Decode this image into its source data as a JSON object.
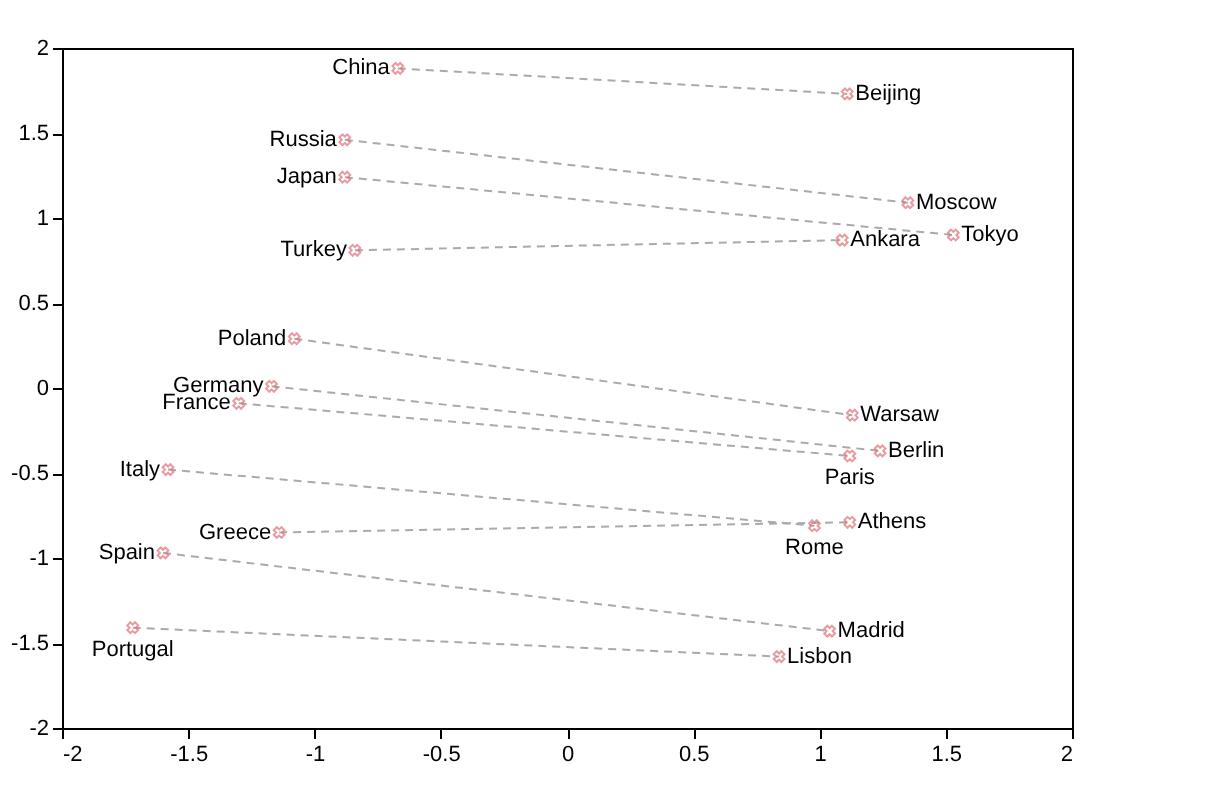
{
  "chart_data": {
    "type": "scatter",
    "xlim": [
      -2,
      2
    ],
    "ylim": [
      -2,
      2
    ],
    "xticks": [
      -2,
      -1.5,
      -1,
      -0.5,
      0,
      0.5,
      1,
      1.5,
      2
    ],
    "yticks": [
      -2,
      -1.5,
      -1,
      -0.5,
      0,
      0.5,
      1,
      1.5,
      2
    ],
    "grid": false,
    "series": [
      {
        "type": "line",
        "marker": "none",
        "line_style": "dashed",
        "color": "#aaaaaa",
        "x": [
          -0.67,
          1.11
        ],
        "values": [
          1.88,
          1.73
        ]
      },
      {
        "type": "line",
        "marker": "none",
        "line_style": "dashed",
        "color": "#aaaaaa",
        "x": [
          -0.88,
          1.35
        ],
        "values": [
          1.46,
          1.09
        ]
      },
      {
        "type": "line",
        "marker": "none",
        "line_style": "dashed",
        "color": "#aaaaaa",
        "x": [
          -0.88,
          1.53
        ],
        "values": [
          1.24,
          0.9
        ]
      },
      {
        "type": "line",
        "marker": "none",
        "line_style": "dashed",
        "color": "#aaaaaa",
        "x": [
          -0.84,
          1.09
        ],
        "values": [
          0.81,
          0.87
        ]
      },
      {
        "type": "line",
        "marker": "none",
        "line_style": "dashed",
        "color": "#aaaaaa",
        "x": [
          -1.08,
          1.13
        ],
        "values": [
          0.29,
          -0.16
        ]
      },
      {
        "type": "line",
        "marker": "none",
        "line_style": "dashed",
        "color": "#aaaaaa",
        "x": [
          -1.17,
          1.24
        ],
        "values": [
          0.01,
          -0.37
        ]
      },
      {
        "type": "line",
        "marker": "none",
        "line_style": "dashed",
        "color": "#aaaaaa",
        "x": [
          -1.3,
          1.12
        ],
        "values": [
          -0.09,
          -0.4
        ]
      },
      {
        "type": "line",
        "marker": "none",
        "line_style": "dashed",
        "color": "#aaaaaa",
        "x": [
          -1.58,
          0.98
        ],
        "values": [
          -0.48,
          -0.81
        ]
      },
      {
        "type": "line",
        "marker": "none",
        "line_style": "dashed",
        "color": "#aaaaaa",
        "x": [
          -1.14,
          1.12
        ],
        "values": [
          -0.85,
          -0.79
        ]
      },
      {
        "type": "line",
        "marker": "none",
        "line_style": "dashed",
        "color": "#aaaaaa",
        "x": [
          -1.6,
          1.04
        ],
        "values": [
          -0.97,
          -1.43
        ]
      },
      {
        "type": "line",
        "marker": "none",
        "line_style": "dashed",
        "color": "#aaaaaa",
        "x": [
          -1.72,
          0.84
        ],
        "values": [
          -1.41,
          -1.58
        ]
      },
      {
        "marker": "cross",
        "color": "#e0707a",
        "x": [
          -0.67,
          1.11,
          -0.88,
          1.35,
          -0.88,
          1.53,
          -0.84,
          1.09,
          -1.08,
          1.13,
          -1.17,
          1.24,
          -1.3,
          1.12,
          -1.58,
          0.98,
          -1.14,
          1.12,
          -1.6,
          1.04,
          -1.72,
          0.84
        ],
        "values": [
          1.88,
          1.73,
          1.46,
          1.09,
          1.24,
          0.9,
          0.81,
          0.87,
          0.29,
          -0.16,
          0.01,
          -0.37,
          -0.09,
          -0.4,
          -0.48,
          -0.81,
          -0.85,
          -0.79,
          -0.97,
          -1.43,
          -1.41,
          -1.58
        ]
      }
    ],
    "annotations": [
      {
        "text": "China",
        "x": -0.67,
        "y": 1.88
      },
      {
        "text": "Beijing",
        "x": 1.11,
        "y": 1.73
      },
      {
        "text": "Russia",
        "x": -0.88,
        "y": 1.46
      },
      {
        "text": "Moscow",
        "x": 1.35,
        "y": 1.09
      },
      {
        "text": "Japan",
        "x": -0.88,
        "y": 1.24
      },
      {
        "text": "Tokyo",
        "x": 1.53,
        "y": 0.9
      },
      {
        "text": "Turkey",
        "x": -0.84,
        "y": 0.81
      },
      {
        "text": "Ankara",
        "x": 1.09,
        "y": 0.87
      },
      {
        "text": "Poland",
        "x": -1.08,
        "y": 0.29
      },
      {
        "text": "Warsaw",
        "x": 1.13,
        "y": -0.16
      },
      {
        "text": "Germany",
        "x": -1.17,
        "y": 0.01
      },
      {
        "text": "Berlin",
        "x": 1.24,
        "y": -0.37
      },
      {
        "text": "France",
        "x": -1.3,
        "y": -0.09
      },
      {
        "text": "Paris",
        "x": 1.12,
        "y": -0.4
      },
      {
        "text": "Italy",
        "x": -1.58,
        "y": -0.48
      },
      {
        "text": "Rome",
        "x": 0.98,
        "y": -0.81
      },
      {
        "text": "Greece",
        "x": -1.14,
        "y": -0.85
      },
      {
        "text": "Athens",
        "x": 1.12,
        "y": -0.79
      },
      {
        "text": "Spain",
        "x": -1.6,
        "y": -0.97
      },
      {
        "text": "Madrid",
        "x": 1.04,
        "y": -1.43
      },
      {
        "text": "Portugal",
        "x": -1.72,
        "y": -1.41
      },
      {
        "text": "Lisbon",
        "x": 0.84,
        "y": -1.58
      }
    ]
  }
}
